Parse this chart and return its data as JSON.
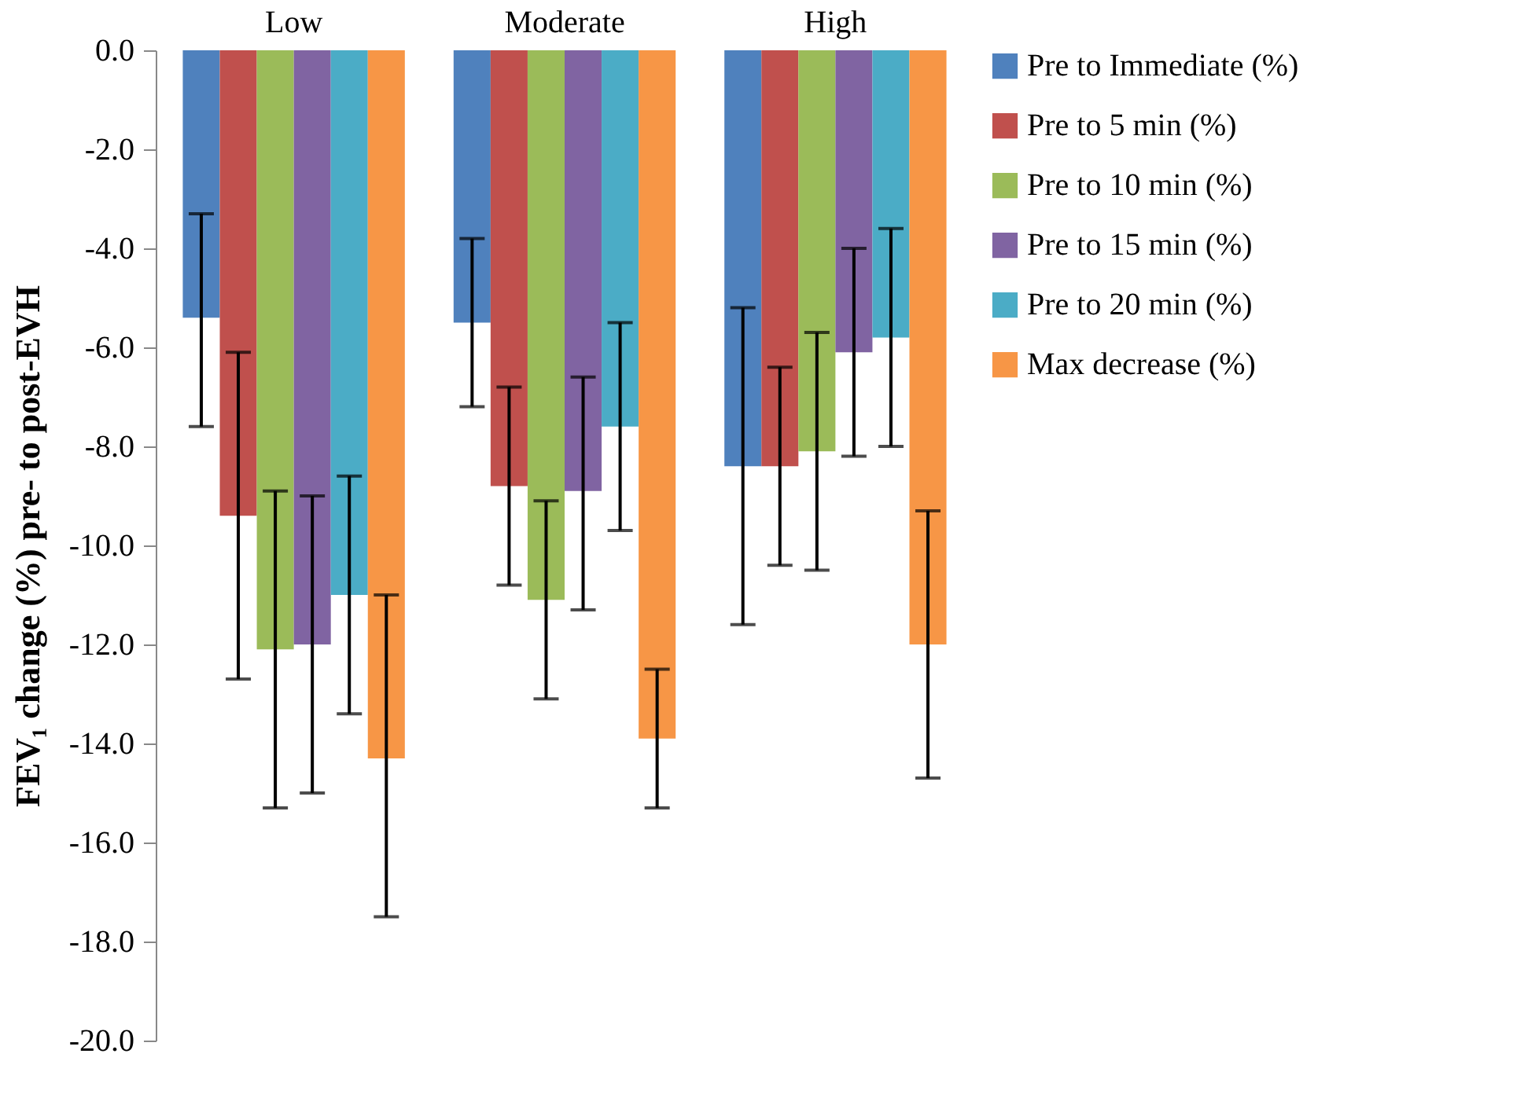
{
  "chart_data": {
    "type": "bar",
    "ylabel": "FEV₁ change (%) pre- to post-EVH",
    "categories": [
      "Low",
      "Moderate",
      "High"
    ],
    "series": [
      {
        "name": "Pre to Immediate (%)",
        "color": "#4f81bd",
        "values": [
          -5.4,
          -5.5,
          -8.4
        ],
        "errors": [
          [
            -7.6,
            -3.3
          ],
          [
            -7.2,
            -3.8
          ],
          [
            -11.6,
            -5.2
          ]
        ]
      },
      {
        "name": "Pre to 5 min (%)",
        "color": "#c0504d",
        "values": [
          -9.4,
          -8.8,
          -8.4
        ],
        "errors": [
          [
            -12.7,
            -6.1
          ],
          [
            -10.8,
            -6.8
          ],
          [
            -10.4,
            -6.4
          ]
        ]
      },
      {
        "name": "Pre to 10 min (%)",
        "color": "#9bbb59",
        "values": [
          -12.1,
          -11.1,
          -8.1
        ],
        "errors": [
          [
            -15.3,
            -8.9
          ],
          [
            -13.1,
            -9.1
          ],
          [
            -10.5,
            -5.7
          ]
        ]
      },
      {
        "name": "Pre to 15 min (%)",
        "color": "#8064a2",
        "values": [
          -12.0,
          -8.9,
          -6.1
        ],
        "errors": [
          [
            -15.0,
            -9.0
          ],
          [
            -11.3,
            -6.6
          ],
          [
            -8.2,
            -4.0
          ]
        ]
      },
      {
        "name": "Pre to 20 min (%)",
        "color": "#4bacc6",
        "values": [
          -11.0,
          -7.6,
          -5.8
        ],
        "errors": [
          [
            -13.4,
            -8.6
          ],
          [
            -9.7,
            -5.5
          ],
          [
            -8.0,
            -3.6
          ]
        ]
      },
      {
        "name": "Max decrease (%)",
        "color": "#f79646",
        "values": [
          -14.3,
          -13.9,
          -12.0
        ],
        "errors": [
          [
            -17.5,
            -11.0
          ],
          [
            -15.3,
            -12.5
          ],
          [
            -14.7,
            -9.3
          ]
        ]
      }
    ],
    "ylim": [
      -20,
      0
    ],
    "yticks": [
      {
        "value": 0,
        "label": "0.0"
      },
      {
        "value": -2,
        "label": "-2.0"
      },
      {
        "value": -4,
        "label": "-4.0"
      },
      {
        "value": -6,
        "label": "-6.0"
      },
      {
        "value": -8,
        "label": "-8.0"
      },
      {
        "value": -10,
        "label": "-10.0"
      },
      {
        "value": -12,
        "label": "-12.0"
      },
      {
        "value": -14,
        "label": "-14.0"
      },
      {
        "value": -16,
        "label": "-16.0"
      },
      {
        "value": -18,
        "label": "-18.0"
      },
      {
        "value": -20,
        "label": "-20.0"
      }
    ],
    "grid": false,
    "legend": "right"
  }
}
